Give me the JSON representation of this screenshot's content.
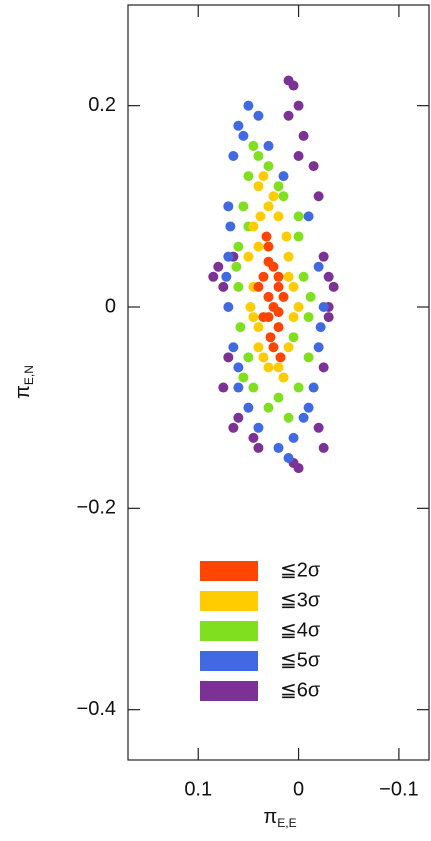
{
  "chart_data": {
    "type": "scatter",
    "xlabel": {
      "symbol": "π",
      "subscript": "E,E"
    },
    "ylabel": {
      "symbol": "π",
      "subscript": "E,N"
    },
    "xlim": [
      0.17,
      -0.13
    ],
    "ylim": [
      -0.45,
      0.3
    ],
    "xticks": [
      0.1,
      0,
      {
        "value": -0.1,
        "label": "−0.1"
      }
    ],
    "yticks": [
      0.2,
      0,
      {
        "value": -0.2,
        "label": "−0.2"
      },
      {
        "value": -0.4,
        "label": "−0.4"
      }
    ],
    "series": [
      {
        "name": "≦6σ",
        "color": "#7b3294",
        "x": [
          0.01,
          0.005,
          0.0,
          -0.005,
          0.01,
          0.0,
          -0.015,
          0.08,
          0.085,
          0.075,
          0.065,
          -0.025,
          -0.03,
          -0.035,
          -0.03,
          -0.03,
          0.07,
          0.075,
          0.06,
          0.065,
          -0.02,
          -0.025,
          0.0,
          0.005,
          -0.025,
          -0.02,
          0.04,
          0.045
        ],
        "y": [
          0.225,
          0.22,
          0.2,
          0.17,
          0.19,
          0.15,
          0.14,
          0.04,
          0.03,
          0.02,
          0.05,
          0.05,
          0.03,
          0.02,
          -0.01,
          0.0,
          -0.05,
          -0.08,
          -0.11,
          -0.12,
          0.11,
          -0.06,
          -0.16,
          -0.155,
          -0.14,
          -0.12,
          -0.14,
          -0.13
        ]
      },
      {
        "name": "≦5σ",
        "color": "#4169e1",
        "x": [
          0.05,
          0.06,
          0.04,
          0.065,
          0.03,
          0.07,
          0.015,
          0.07,
          -0.01,
          0.07,
          -0.02,
          0.065,
          -0.025,
          0.06,
          -0.02,
          0.05,
          -0.015,
          0.04,
          -0.005,
          0.02,
          0.005,
          0.01,
          0.072,
          -0.022,
          0.068,
          0.055,
          0.06,
          -0.01
        ],
        "y": [
          0.2,
          0.18,
          0.19,
          0.15,
          0.16,
          0.1,
          0.13,
          0.05,
          0.09,
          0.0,
          0.04,
          -0.04,
          0.0,
          -0.08,
          -0.04,
          -0.1,
          -0.08,
          -0.12,
          -0.11,
          -0.14,
          -0.13,
          -0.15,
          0.03,
          -0.02,
          0.08,
          0.17,
          -0.06,
          -0.1
        ]
      },
      {
        "name": "≦4σ",
        "color": "#80e020",
        "x": [
          0.045,
          0.05,
          0.03,
          0.055,
          0.015,
          0.06,
          0.0,
          0.06,
          -0.005,
          0.058,
          -0.01,
          0.05,
          -0.01,
          0.045,
          0.0,
          0.03,
          0.01,
          0.04,
          0.02,
          0.062,
          -0.012,
          0.055,
          0.02,
          0.005,
          0.05,
          0.0
        ],
        "y": [
          0.16,
          0.13,
          0.14,
          0.1,
          0.11,
          0.06,
          0.07,
          0.02,
          0.03,
          -0.02,
          -0.01,
          -0.05,
          -0.05,
          -0.08,
          -0.08,
          -0.1,
          -0.11,
          0.15,
          0.12,
          0.04,
          0.01,
          -0.07,
          -0.09,
          -0.03,
          0.08,
          0.09
        ]
      },
      {
        "name": "≦3σ",
        "color": "#ffcc00",
        "x": [
          0.04,
          0.03,
          0.045,
          0.02,
          0.05,
          0.01,
          0.045,
          0.005,
          0.045,
          0.005,
          0.04,
          0.01,
          0.03,
          0.015,
          0.035,
          0.04,
          0.012,
          0.048,
          0.0,
          0.02,
          0.038,
          0.025,
          0.04,
          0.01,
          0.035
        ],
        "y": [
          0.12,
          0.1,
          0.08,
          0.09,
          0.05,
          0.05,
          0.02,
          0.02,
          -0.01,
          -0.01,
          -0.04,
          -0.04,
          -0.06,
          -0.07,
          0.13,
          0.06,
          0.07,
          0.0,
          0.0,
          -0.06,
          0.09,
          0.11,
          -0.02,
          0.03,
          -0.05
        ]
      },
      {
        "name": "≦2σ",
        "color": "#ff4500",
        "x": [
          0.03,
          0.025,
          0.035,
          0.02,
          0.03,
          0.025,
          0.03,
          0.02,
          0.035,
          0.015,
          0.025,
          0.03,
          0.02,
          0.02,
          0.04,
          0.028,
          0.018,
          0.032
        ],
        "y": [
          0.06,
          0.04,
          0.03,
          0.02,
          0.01,
          0,
          -0.01,
          -0.02,
          -0.01,
          0.01,
          -0.04,
          0.045,
          0.03,
          -0.005,
          0.02,
          -0.03,
          -0.05,
          0.07
        ]
      }
    ]
  }
}
